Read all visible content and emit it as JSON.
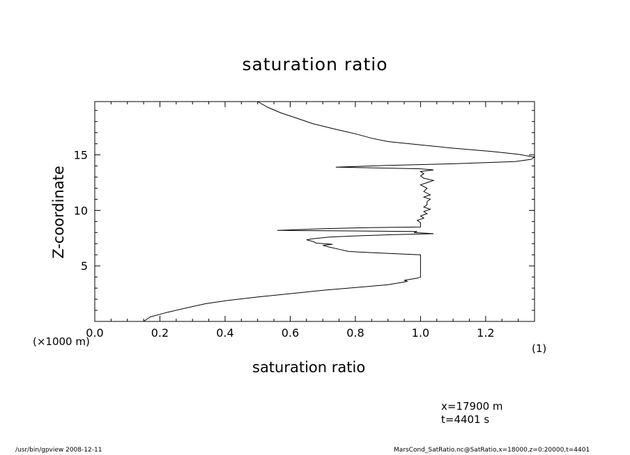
{
  "chart_data": {
    "type": "line",
    "title": "saturation ratio",
    "xlabel": "saturation ratio",
    "ylabel": "Z-coordinate",
    "x_unit_label": "(1)",
    "y_unit_label": "(×1000 m)",
    "xlim": [
      0.0,
      1.35
    ],
    "ylim": [
      0.0,
      19.8
    ],
    "x_ticks": [
      0.0,
      0.2,
      0.4,
      0.6,
      0.8,
      1.0,
      1.2
    ],
    "x_tick_labels": [
      "0.0",
      "0.2",
      "0.4",
      "0.6",
      "0.8",
      "1.0",
      "1.2"
    ],
    "y_ticks": [
      5,
      10,
      15
    ],
    "y_tick_labels": [
      "5",
      "10",
      "15"
    ],
    "grid": false,
    "series": [
      {
        "points": [
          [
            0.15,
            0.0
          ],
          [
            0.17,
            0.4
          ],
          [
            0.22,
            0.8
          ],
          [
            0.28,
            1.2
          ],
          [
            0.34,
            1.6
          ],
          [
            0.41,
            1.9
          ],
          [
            0.5,
            2.2
          ],
          [
            0.6,
            2.5
          ],
          [
            0.7,
            2.8
          ],
          [
            0.82,
            3.1
          ],
          [
            0.9,
            3.3
          ],
          [
            0.94,
            3.5
          ],
          [
            0.96,
            3.6
          ],
          [
            0.95,
            3.7
          ],
          [
            0.97,
            3.8
          ],
          [
            0.99,
            3.9
          ],
          [
            1.0,
            4.0
          ],
          [
            1.0,
            4.5
          ],
          [
            1.0,
            5.0
          ],
          [
            1.0,
            5.5
          ],
          [
            1.0,
            6.0
          ],
          [
            0.92,
            6.1
          ],
          [
            0.85,
            6.2
          ],
          [
            0.78,
            6.3
          ],
          [
            0.75,
            6.5
          ],
          [
            0.72,
            6.7
          ],
          [
            0.7,
            6.85
          ],
          [
            0.73,
            6.95
          ],
          [
            0.68,
            7.05
          ],
          [
            0.67,
            7.2
          ],
          [
            0.65,
            7.35
          ],
          [
            0.67,
            7.45
          ],
          [
            0.72,
            7.6
          ],
          [
            0.8,
            7.7
          ],
          [
            0.9,
            7.8
          ],
          [
            1.04,
            7.9
          ],
          [
            0.98,
            8.0
          ],
          [
            0.99,
            8.1
          ],
          [
            0.56,
            8.2
          ],
          [
            0.7,
            8.35
          ],
          [
            0.85,
            8.45
          ],
          [
            1.0,
            8.5
          ],
          [
            1.0,
            8.7
          ],
          [
            1.0,
            8.9
          ],
          [
            0.99,
            9.1
          ],
          [
            1.01,
            9.3
          ],
          [
            1.0,
            9.5
          ],
          [
            1.02,
            9.7
          ],
          [
            1.01,
            9.9
          ],
          [
            1.03,
            10.1
          ],
          [
            1.01,
            10.3
          ],
          [
            1.02,
            10.5
          ],
          [
            1.02,
            10.8
          ],
          [
            1.03,
            11.0
          ],
          [
            1.01,
            11.2
          ],
          [
            1.03,
            11.4
          ],
          [
            1.01,
            11.7
          ],
          [
            1.02,
            12.0
          ],
          [
            1.0,
            12.3
          ],
          [
            1.02,
            12.5
          ],
          [
            1.04,
            12.7
          ],
          [
            1.01,
            12.9
          ],
          [
            1.0,
            13.1
          ],
          [
            1.01,
            13.3
          ],
          [
            1.0,
            13.5
          ],
          [
            1.04,
            13.65
          ],
          [
            1.0,
            13.75
          ],
          [
            0.74,
            13.9
          ],
          [
            0.9,
            14.05
          ],
          [
            1.1,
            14.2
          ],
          [
            1.29,
            14.4
          ],
          [
            1.34,
            14.6
          ],
          [
            1.35,
            14.8
          ],
          [
            1.3,
            15.05
          ],
          [
            1.22,
            15.3
          ],
          [
            1.1,
            15.6
          ],
          [
            1.0,
            15.9
          ],
          [
            0.9,
            16.2
          ],
          [
            0.85,
            16.5
          ],
          [
            0.8,
            16.9
          ],
          [
            0.74,
            17.3
          ],
          [
            0.67,
            17.8
          ],
          [
            0.62,
            18.3
          ],
          [
            0.57,
            18.8
          ],
          [
            0.53,
            19.3
          ],
          [
            0.5,
            19.8
          ]
        ]
      }
    ]
  },
  "annotations": {
    "position": "x=17900 m",
    "time": "t=4401 s"
  },
  "footer": {
    "left": "/usr/bin/gpview   2008-12-11",
    "right": "MarsCond_SatRatio.nc@SatRatio,x=18000,z=0:20000,t=4401"
  }
}
